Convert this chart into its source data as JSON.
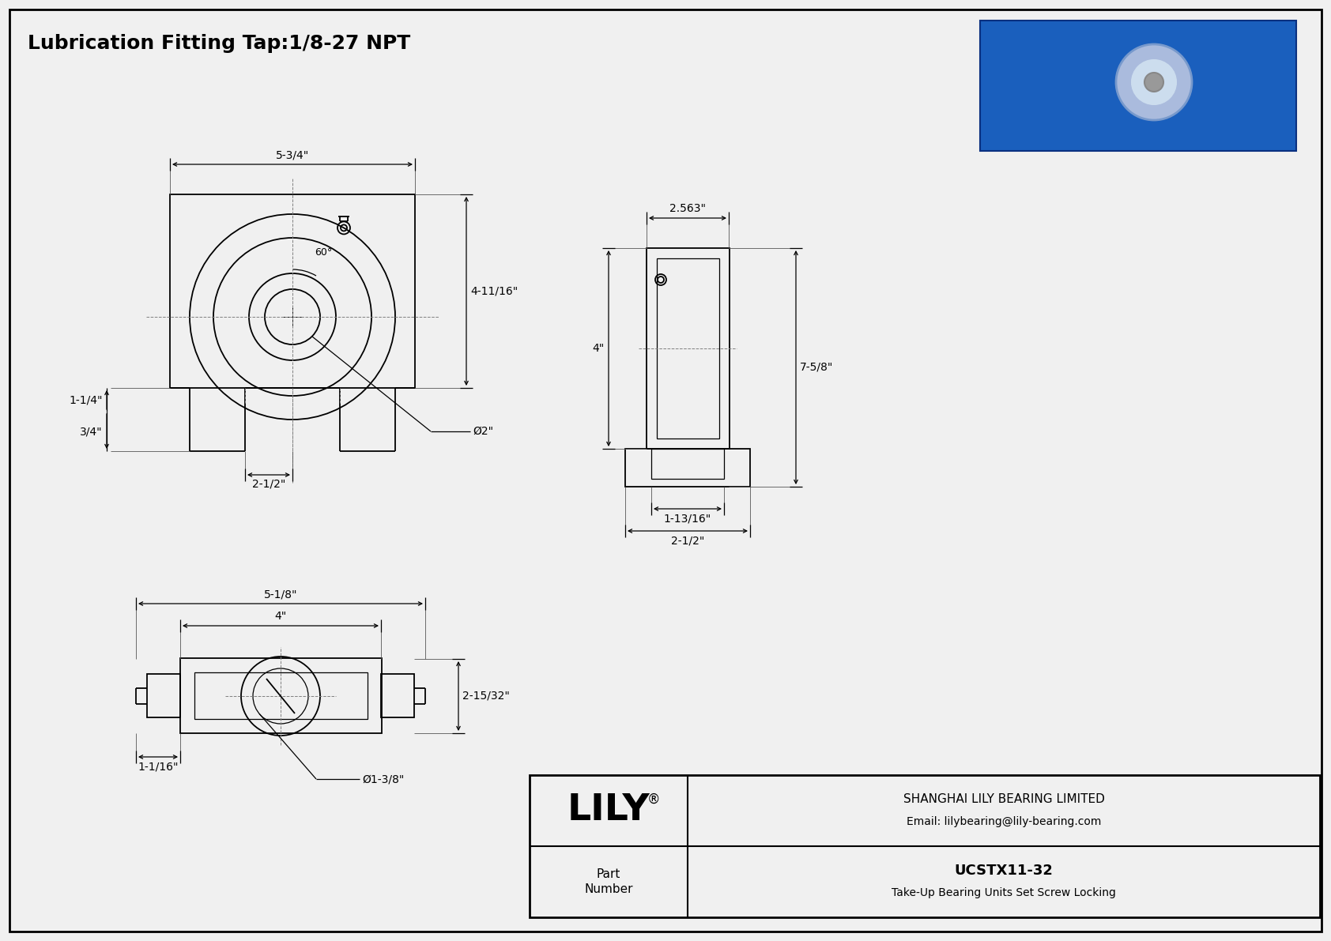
{
  "title": "Lubrication Fitting Tap:1/8-27 NPT",
  "bg_color": "#f0f0f0",
  "line_color": "#000000",
  "part_number": "UCSTX11-32",
  "part_desc": "Take-Up Bearing Units Set Screw Locking",
  "company": "SHANGHAI LILY BEARING LIMITED",
  "email": "Email: lilybearing@lily-bearing.com",
  "brand": "LILY",
  "dims_front": {
    "width": "5-3/4\"",
    "h_upper": "4-11/16\"",
    "h_lower": "1-1/4\"",
    "base_h": "3/4\"",
    "half_w": "2-1/2\"",
    "bore": "Ø2\"",
    "angle": "60°"
  },
  "dims_side": {
    "width": "2.563\"",
    "height": "4\"",
    "total_h": "7-5/8\"",
    "base_inner": "1-13/16\"",
    "base_outer": "2-1/2\""
  },
  "dims_bot": {
    "total_w": "5-1/8\"",
    "inner_w": "4\"",
    "height": "2-15/32\"",
    "leg": "1-1/16\"",
    "bore": "Ø1-3/8\""
  }
}
